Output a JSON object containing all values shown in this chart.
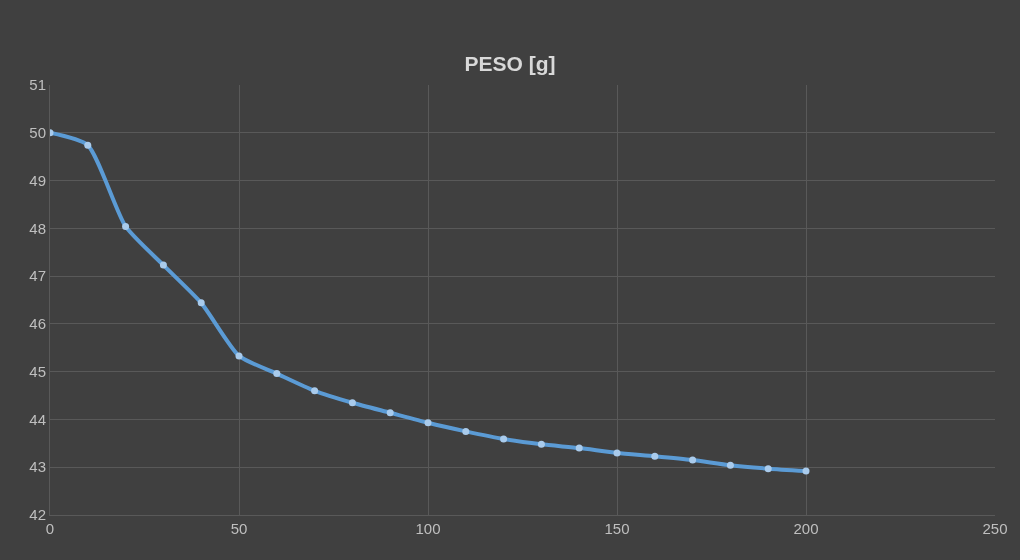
{
  "chart_data": {
    "type": "line",
    "title": "PESO [g]",
    "x": [
      0,
      10,
      20,
      30,
      40,
      50,
      60,
      70,
      80,
      90,
      100,
      110,
      120,
      130,
      140,
      150,
      160,
      170,
      180,
      190,
      200
    ],
    "series": [
      {
        "color": "#5b9bd5",
        "values": [
          50.0,
          49.74,
          48.04,
          47.23,
          46.44,
          45.33,
          44.96,
          44.6,
          44.35,
          44.14,
          43.93,
          43.75,
          43.59,
          43.48,
          43.4,
          43.3,
          43.23,
          43.15,
          43.04,
          42.97,
          42.92
        ]
      }
    ],
    "xlim": [
      0,
      250
    ],
    "xticks": [
      0,
      50,
      100,
      150,
      200,
      250
    ],
    "ylim": [
      42,
      51
    ],
    "yticks": [
      42,
      43,
      44,
      45,
      46,
      47,
      48,
      49,
      50,
      51
    ],
    "grid": true,
    "marker": "circle"
  }
}
